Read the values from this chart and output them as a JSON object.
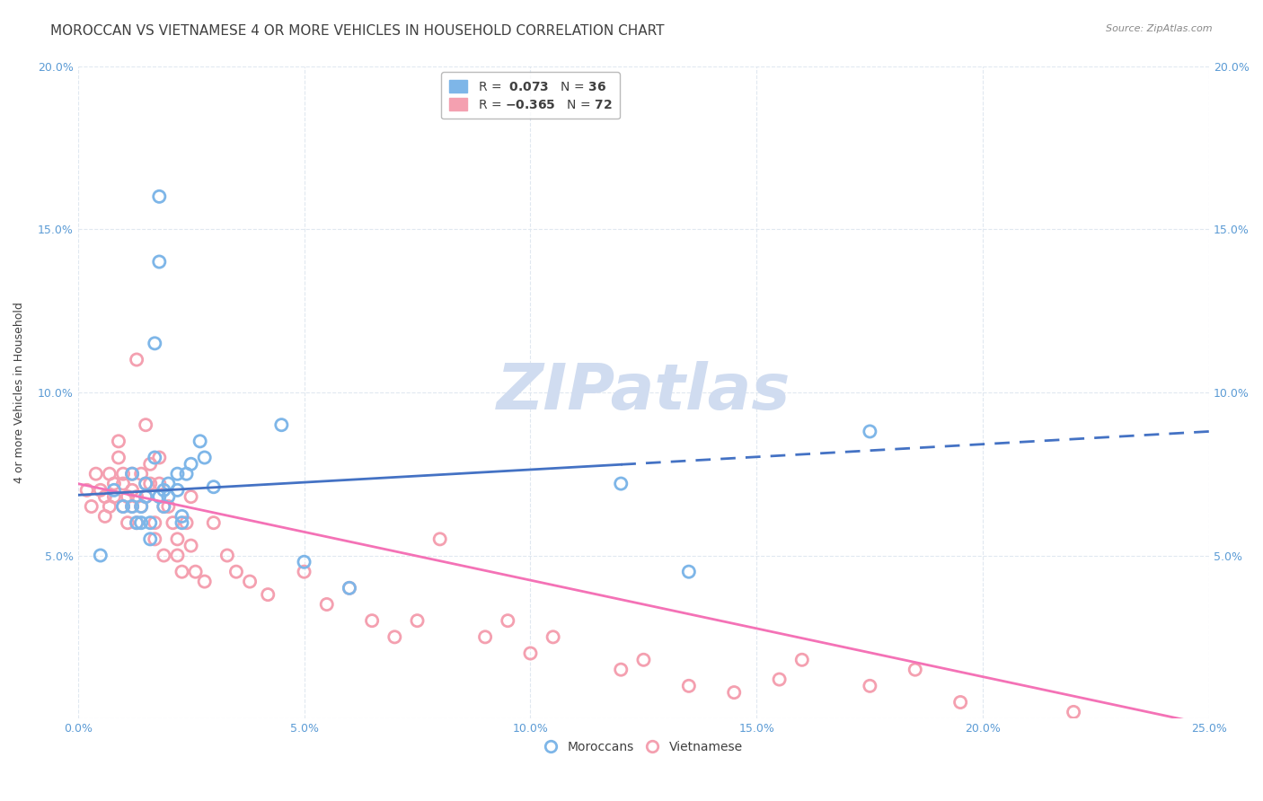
{
  "title": "MOROCCAN VS VIETNAMESE 4 OR MORE VEHICLES IN HOUSEHOLD CORRELATION CHART",
  "source": "Source: ZipAtlas.com",
  "ylabel": "4 or more Vehicles in Household",
  "xlim": [
    0.0,
    0.25
  ],
  "ylim": [
    0.0,
    0.2
  ],
  "xticks": [
    0.0,
    0.05,
    0.1,
    0.15,
    0.2,
    0.25
  ],
  "yticks": [
    0.0,
    0.05,
    0.1,
    0.15,
    0.2
  ],
  "xtick_labels": [
    "0.0%",
    "5.0%",
    "10.0%",
    "15.0%",
    "20.0%",
    "25.0%"
  ],
  "ytick_labels": [
    "",
    "5.0%",
    "10.0%",
    "15.0%",
    "20.0%"
  ],
  "right_ytick_labels": [
    "",
    "5.0%",
    "10.0%",
    "15.0%",
    "20.0%"
  ],
  "moroccan_R": 0.073,
  "moroccan_N": 36,
  "vietnamese_R": -0.365,
  "vietnamese_N": 72,
  "moroccan_color": "#7EB6E8",
  "vietnamese_color": "#F4A0B0",
  "moroccan_line_color": "#4472C4",
  "vietnamese_line_color": "#F472B6",
  "watermark": "ZIPatlas",
  "watermark_color": "#D0DCF0",
  "moroccan_scatter_x": [
    0.005,
    0.008,
    0.01,
    0.012,
    0.012,
    0.013,
    0.014,
    0.014,
    0.015,
    0.015,
    0.016,
    0.016,
    0.017,
    0.017,
    0.018,
    0.018,
    0.018,
    0.019,
    0.019,
    0.02,
    0.02,
    0.022,
    0.022,
    0.023,
    0.023,
    0.024,
    0.025,
    0.027,
    0.028,
    0.03,
    0.045,
    0.05,
    0.06,
    0.12,
    0.135,
    0.175
  ],
  "moroccan_scatter_y": [
    0.05,
    0.07,
    0.065,
    0.075,
    0.065,
    0.06,
    0.06,
    0.065,
    0.072,
    0.068,
    0.06,
    0.055,
    0.08,
    0.115,
    0.16,
    0.14,
    0.068,
    0.07,
    0.065,
    0.068,
    0.072,
    0.075,
    0.07,
    0.062,
    0.06,
    0.075,
    0.078,
    0.085,
    0.08,
    0.071,
    0.09,
    0.048,
    0.04,
    0.072,
    0.045,
    0.088
  ],
  "vietnamese_scatter_x": [
    0.002,
    0.003,
    0.004,
    0.005,
    0.006,
    0.006,
    0.007,
    0.007,
    0.008,
    0.008,
    0.009,
    0.009,
    0.01,
    0.01,
    0.01,
    0.011,
    0.011,
    0.012,
    0.012,
    0.012,
    0.013,
    0.013,
    0.013,
    0.014,
    0.014,
    0.015,
    0.015,
    0.015,
    0.016,
    0.016,
    0.017,
    0.017,
    0.018,
    0.018,
    0.019,
    0.019,
    0.02,
    0.021,
    0.022,
    0.022,
    0.023,
    0.024,
    0.025,
    0.025,
    0.026,
    0.028,
    0.03,
    0.033,
    0.035,
    0.038,
    0.042,
    0.05,
    0.055,
    0.06,
    0.065,
    0.07,
    0.075,
    0.08,
    0.09,
    0.095,
    0.1,
    0.105,
    0.12,
    0.125,
    0.135,
    0.145,
    0.155,
    0.16,
    0.175,
    0.185,
    0.195,
    0.22
  ],
  "vietnamese_scatter_y": [
    0.07,
    0.065,
    0.075,
    0.07,
    0.068,
    0.062,
    0.075,
    0.065,
    0.072,
    0.068,
    0.085,
    0.08,
    0.072,
    0.065,
    0.075,
    0.068,
    0.06,
    0.075,
    0.07,
    0.065,
    0.11,
    0.068,
    0.06,
    0.075,
    0.065,
    0.09,
    0.072,
    0.068,
    0.078,
    0.072,
    0.06,
    0.055,
    0.08,
    0.072,
    0.065,
    0.05,
    0.065,
    0.06,
    0.055,
    0.05,
    0.045,
    0.06,
    0.053,
    0.068,
    0.045,
    0.042,
    0.06,
    0.05,
    0.045,
    0.042,
    0.038,
    0.045,
    0.035,
    0.04,
    0.03,
    0.025,
    0.03,
    0.055,
    0.025,
    0.03,
    0.02,
    0.025,
    0.015,
    0.018,
    0.01,
    0.008,
    0.012,
    0.018,
    0.01,
    0.015,
    0.005,
    0.002
  ],
  "moroccan_trend_x": [
    0.0,
    0.25
  ],
  "moroccan_trend_y": [
    0.0685,
    0.088
  ],
  "vietnamese_trend_x": [
    0.0,
    0.25
  ],
  "vietnamese_trend_y": [
    0.072,
    -0.002
  ],
  "trend_split_x": 0.12,
  "background_color": "#FFFFFF",
  "grid_color": "#E0E8F0",
  "title_color": "#404040",
  "axis_color": "#5B9BD5",
  "legend_box_color": "#FFFFFF",
  "legend_border_color": "#AAAAAA",
  "title_fontsize": 11,
  "axis_label_fontsize": 9,
  "tick_fontsize": 9,
  "legend_fontsize": 10,
  "source_fontsize": 8
}
